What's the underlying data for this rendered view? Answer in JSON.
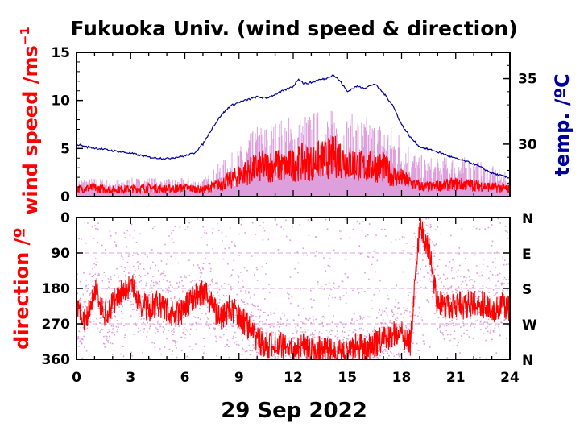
{
  "chart_data": [
    {
      "type": "line",
      "title": "Fukuoka Univ. (wind speed & direction)",
      "ylabel": "wind speed /ms",
      "ylabel_superscript": "−1",
      "y2label": "temp. /ºC",
      "xlim": [
        0,
        24
      ],
      "ylim": [
        0,
        15
      ],
      "y2lim": [
        26,
        37
      ],
      "y_ticks": [
        "0",
        "5",
        "10",
        "15"
      ],
      "y2_ticks": [
        "30",
        "35"
      ],
      "colors": {
        "wind": "#ff0000",
        "gust": "#dda0dd",
        "temp": "#00009c"
      },
      "series": [
        {
          "key": "temp",
          "x": [
            0,
            0.5,
            1,
            1.5,
            2,
            3,
            4,
            5,
            5.5,
            6,
            6.5,
            7,
            7.5,
            8,
            8.5,
            9,
            9.5,
            10,
            10.5,
            11,
            11.5,
            12,
            12.3,
            12.6,
            13,
            13.4,
            13.8,
            14.2,
            14.6,
            15,
            15.5,
            16,
            16.5,
            17,
            17.5,
            18,
            18.5,
            19,
            19.5,
            20,
            21,
            22,
            23,
            24
          ],
          "values": [
            30,
            29.8,
            29.7,
            29.6,
            29.5,
            29.3,
            29.0,
            28.9,
            29.0,
            29.1,
            29.3,
            30.0,
            31.2,
            32.2,
            32.9,
            33.2,
            33.4,
            33.6,
            33.5,
            33.8,
            34.1,
            34.4,
            35.0,
            34.6,
            34.7,
            34.9,
            35.0,
            35.3,
            34.8,
            34.0,
            34.4,
            34.3,
            34.6,
            33.9,
            33.0,
            31.5,
            30.5,
            29.8,
            29.6,
            29.4,
            28.9,
            28.5,
            27.8,
            27.4
          ]
        },
        {
          "key": "wind",
          "x": [
            0,
            1,
            2,
            3,
            4,
            5,
            6,
            7,
            7.5,
            8,
            8.5,
            9,
            9.5,
            10,
            10.5,
            11,
            11.5,
            12,
            12.5,
            13,
            13.5,
            14,
            14.5,
            15,
            15.5,
            16,
            16.5,
            17,
            17.5,
            18,
            18.5,
            19,
            19.5,
            20,
            21,
            22,
            23,
            24
          ],
          "values": [
            0.8,
            0.9,
            0.7,
            0.8,
            0.9,
            0.8,
            0.9,
            0.7,
            1.0,
            1.3,
            1.7,
            2.2,
            2.6,
            3.0,
            3.1,
            3.3,
            3.0,
            3.3,
            3.6,
            3.5,
            3.8,
            4.0,
            4.2,
            3.6,
            3.3,
            3.0,
            3.2,
            3.0,
            2.2,
            1.9,
            1.4,
            1.1,
            1.0,
            1.1,
            1.3,
            1.2,
            1.0,
            0.8
          ]
        },
        {
          "key": "gust",
          "x": [
            0,
            1,
            2,
            3,
            4,
            5,
            6,
            7,
            8,
            9,
            10,
            11,
            12,
            13,
            14,
            15,
            16,
            17,
            18,
            19,
            20,
            21,
            22,
            23,
            24
          ],
          "values": [
            1.8,
            1.7,
            1.6,
            1.7,
            1.8,
            1.6,
            1.7,
            1.6,
            3.2,
            4.5,
            6.5,
            7.0,
            7.5,
            7.8,
            8.0,
            7.6,
            7.3,
            7.0,
            6.0,
            3.8,
            3.5,
            3.8,
            3.4,
            2.8,
            2.0
          ]
        }
      ]
    },
    {
      "type": "scatter",
      "ylabel": "direction /º",
      "xlabel": "29 Sep 2022",
      "xlim": [
        0,
        24
      ],
      "ylim": [
        0,
        360
      ],
      "y_inverted": true,
      "x_ticks": [
        "0",
        "3",
        "6",
        "9",
        "12",
        "15",
        "18",
        "21",
        "24"
      ],
      "y_ticks": [
        "0",
        "90",
        "180",
        "270",
        "360"
      ],
      "y2_ticks": [
        "N",
        "E",
        "S",
        "W",
        "N"
      ],
      "colors": {
        "mean": "#ff0000",
        "raw": "#dda0dd"
      },
      "series": [
        {
          "key": "mean",
          "x": [
            0,
            0.5,
            1,
            1.5,
            2,
            2.5,
            3,
            3.5,
            4,
            4.5,
            5,
            5.5,
            6,
            6.5,
            7,
            7.5,
            8,
            8.5,
            9,
            9.5,
            10,
            10.5,
            11,
            11.5,
            12,
            12.5,
            13,
            13.5,
            14,
            14.5,
            15,
            15.5,
            16,
            16.5,
            17,
            17.5,
            18,
            18.5,
            19,
            19.5,
            20,
            20.5,
            21,
            21.5,
            22,
            22.5,
            23,
            23.5,
            24
          ],
          "values": [
            240,
            260,
            180,
            250,
            220,
            190,
            170,
            215,
            235,
            215,
            235,
            250,
            230,
            200,
            185,
            220,
            260,
            225,
            250,
            275,
            310,
            330,
            315,
            330,
            340,
            325,
            340,
            335,
            340,
            345,
            345,
            325,
            335,
            320,
            310,
            295,
            290,
            320,
            20,
            80,
            220,
            225,
            220,
            225,
            215,
            220,
            235,
            220,
            230
          ]
        }
      ]
    }
  ]
}
